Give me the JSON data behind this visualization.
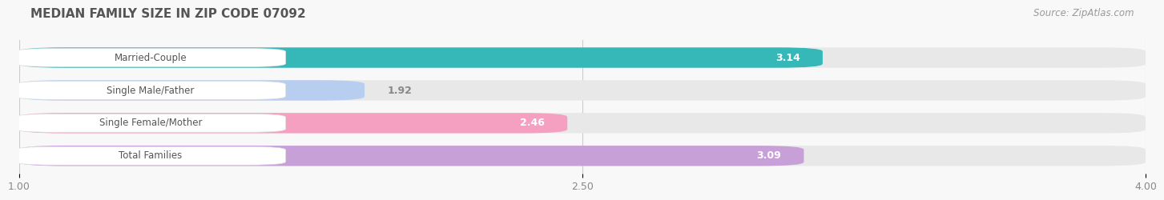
{
  "title": "MEDIAN FAMILY SIZE IN ZIP CODE 07092",
  "source": "Source: ZipAtlas.com",
  "categories": [
    "Married-Couple",
    "Single Male/Father",
    "Single Female/Mother",
    "Total Families"
  ],
  "values": [
    3.14,
    1.92,
    2.46,
    3.09
  ],
  "bar_colors": [
    "#36b8b8",
    "#b8cef0",
    "#f5a0c0",
    "#c8a0d8"
  ],
  "bg_bar_color": "#e8e8e8",
  "background_color": "#f8f8f8",
  "xlim": [
    1.0,
    4.0
  ],
  "xticks": [
    1.0,
    2.5,
    4.0
  ],
  "grid_color": "#cccccc",
  "label_bg_color": "#ffffff",
  "label_text_color": "#555555",
  "value_color_inside": "#ffffff",
  "value_color_outside": "#888888",
  "title_color": "#555555",
  "source_color": "#999999"
}
